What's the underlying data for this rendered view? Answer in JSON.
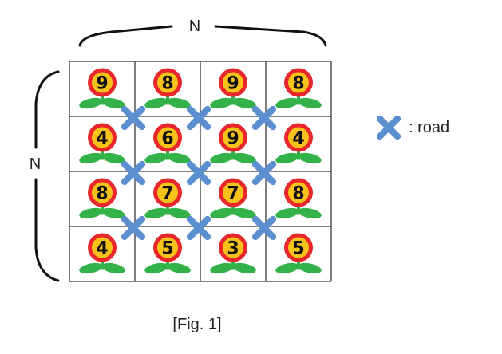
{
  "figure": {
    "top_label": "N",
    "left_label": "N",
    "caption": "[Fig. 1]",
    "legend_label": ": road",
    "grid": [
      [
        9,
        8,
        9,
        8
      ],
      [
        4,
        6,
        9,
        4
      ],
      [
        8,
        7,
        7,
        8
      ],
      [
        4,
        5,
        3,
        5
      ]
    ],
    "colors": {
      "petal": "#e8262b",
      "center": "#f7c31a",
      "leaf": "#33b24a",
      "road": "#5b8fcf",
      "grid_line": "#555555"
    },
    "icons": [
      "flower-icon",
      "road-cross-icon",
      "brace-icon"
    ]
  }
}
